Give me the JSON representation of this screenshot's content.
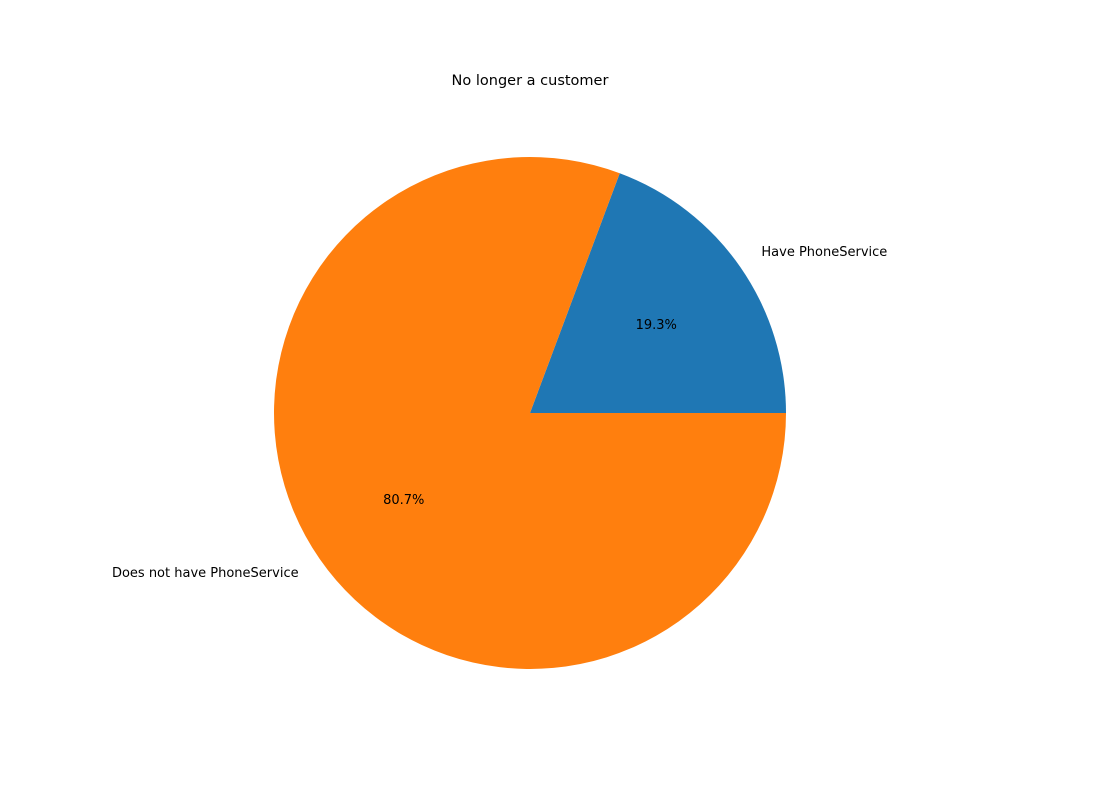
{
  "chart_data": {
    "type": "pie",
    "title": "No longer a customer",
    "categories": [
      "Have PhoneService",
      "Does not have PhoneService"
    ],
    "values": [
      19.3,
      80.7
    ],
    "value_labels": [
      "19.3%",
      "80.7%"
    ],
    "colors": [
      "#1f77b4",
      "#ff7f0e"
    ],
    "start_angle_deg": 0,
    "direction": "counterclockwise",
    "legend": "none"
  }
}
